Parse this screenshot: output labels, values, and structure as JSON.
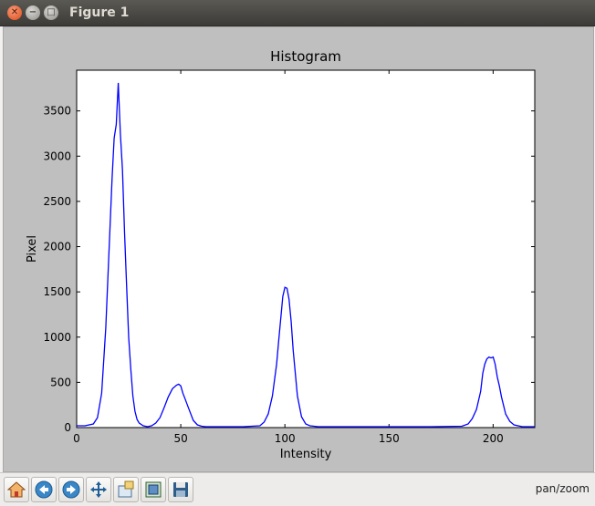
{
  "window": {
    "title": "Figure 1"
  },
  "toolbar": {
    "status": "pan/zoom",
    "buttons": [
      {
        "name": "home-button",
        "icon": "home-icon"
      },
      {
        "name": "back-button",
        "icon": "back-arrow-icon"
      },
      {
        "name": "forward-button",
        "icon": "forward-arrow-icon"
      },
      {
        "name": "pan-button",
        "icon": "pan-arrows-icon"
      },
      {
        "name": "zoom-button",
        "icon": "zoom-rect-icon"
      },
      {
        "name": "subplots-button",
        "icon": "subplots-icon"
      },
      {
        "name": "save-button",
        "icon": "floppy-disk-icon"
      }
    ]
  },
  "chart_data": {
    "type": "line",
    "title": "Histogram",
    "xlabel": "Intensity",
    "ylabel": "Pixel",
    "xlim": [
      0,
      220
    ],
    "ylim": [
      0,
      3950
    ],
    "xticks": [
      0,
      50,
      100,
      150,
      200
    ],
    "yticks": [
      0,
      500,
      1000,
      1500,
      2000,
      2500,
      3000,
      3500
    ],
    "grid": false,
    "line_color": "#0000ff",
    "series": [
      {
        "x": [
          0,
          4,
          8,
          10,
          12,
          14,
          16,
          17,
          18,
          19,
          20,
          21,
          22,
          23,
          24,
          25,
          26,
          27,
          28,
          29,
          30,
          32,
          34,
          36,
          38,
          40,
          42,
          44,
          46,
          48,
          49,
          50,
          51,
          52,
          54,
          56,
          58,
          60,
          62,
          64,
          70,
          80,
          88,
          90,
          92,
          94,
          96,
          97,
          98,
          99,
          100,
          101,
          102,
          103,
          104,
          106,
          108,
          110,
          112,
          116,
          130,
          150,
          170,
          185,
          188,
          190,
          192,
          194,
          195,
          196,
          197,
          198,
          199,
          200,
          201,
          202,
          203,
          204,
          206,
          208,
          210,
          214,
          220
        ],
        "y": [
          20,
          20,
          40,
          110,
          380,
          1100,
          2200,
          2750,
          3200,
          3350,
          3810,
          3250,
          2850,
          2150,
          1550,
          1000,
          650,
          350,
          180,
          90,
          50,
          20,
          10,
          20,
          50,
          110,
          220,
          340,
          430,
          470,
          480,
          460,
          380,
          320,
          200,
          80,
          30,
          15,
          10,
          10,
          10,
          10,
          20,
          60,
          150,
          350,
          700,
          950,
          1200,
          1450,
          1550,
          1540,
          1420,
          1180,
          850,
          350,
          120,
          40,
          20,
          10,
          10,
          10,
          10,
          15,
          40,
          100,
          200,
          400,
          600,
          700,
          760,
          780,
          770,
          780,
          700,
          560,
          460,
          340,
          150,
          70,
          30,
          10,
          10
        ]
      }
    ]
  }
}
